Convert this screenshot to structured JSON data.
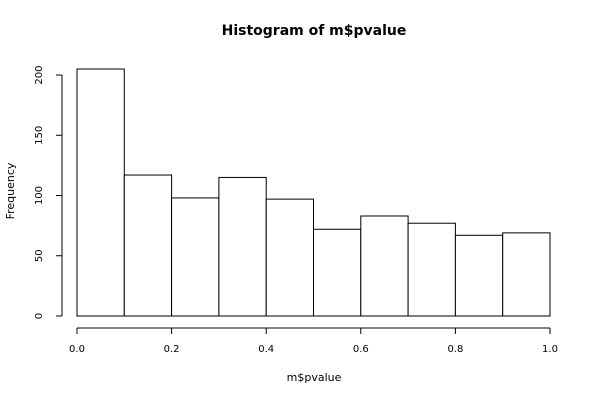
{
  "chart_data": {
    "type": "bar",
    "title": "Histogram of m$pvalue",
    "xlabel": "m$pvalue",
    "ylabel": "Frequency",
    "bins": [
      {
        "start": 0.0,
        "end": 0.1,
        "value": 205
      },
      {
        "start": 0.1,
        "end": 0.2,
        "value": 117
      },
      {
        "start": 0.2,
        "end": 0.3,
        "value": 98
      },
      {
        "start": 0.3,
        "end": 0.4,
        "value": 115
      },
      {
        "start": 0.4,
        "end": 0.5,
        "value": 97
      },
      {
        "start": 0.5,
        "end": 0.6,
        "value": 72
      },
      {
        "start": 0.6,
        "end": 0.7,
        "value": 83
      },
      {
        "start": 0.7,
        "end": 0.8,
        "value": 77
      },
      {
        "start": 0.8,
        "end": 0.9,
        "value": 67
      },
      {
        "start": 0.9,
        "end": 1.0,
        "value": 69
      }
    ],
    "xlim": [
      0.0,
      1.0
    ],
    "ylim": [
      0,
      205
    ],
    "xticks": [
      0.0,
      0.2,
      0.4,
      0.6,
      0.8,
      1.0
    ],
    "xtick_labels": [
      "0.0",
      "0.2",
      "0.4",
      "0.6",
      "0.8",
      "1.0"
    ],
    "yticks": [
      0,
      50,
      100,
      150,
      200
    ],
    "ytick_labels": [
      "0",
      "50",
      "100",
      "150",
      "200"
    ],
    "grid": false
  }
}
